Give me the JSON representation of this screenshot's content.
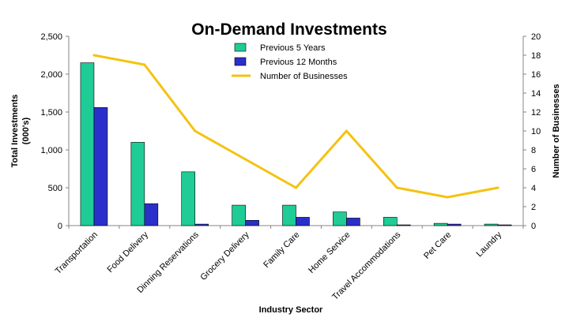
{
  "chart_data": {
    "type": "bar",
    "title": "On-Demand Investments",
    "xlabel": "Industry Sector",
    "ylabel": "Total Investments (000's)",
    "ylabel_lines": [
      "Total Investments",
      "(000's)"
    ],
    "y2label": "Number of Businesses",
    "ylim": [
      0,
      2500
    ],
    "y2lim": [
      0,
      20
    ],
    "yticks": [
      0,
      500,
      1000,
      1500,
      2000,
      2500
    ],
    "yticklabels": [
      "0",
      "500",
      "1,000",
      "1,500",
      "2,000",
      "2,500"
    ],
    "y2ticks": [
      0,
      2,
      4,
      6,
      8,
      10,
      12,
      14,
      16,
      18,
      20
    ],
    "y2ticklabels": [
      "0",
      "2",
      "4",
      "6",
      "8",
      "10",
      "12",
      "14",
      "16",
      "18",
      "20"
    ],
    "categories": [
      "Transportation",
      "Food Delivery",
      "Dinning Reservations",
      "Grocery Delivery",
      "Family Care",
      "Home Service",
      "Travel Accommodations",
      "Pet Care",
      "Laundry"
    ],
    "series": [
      {
        "name": "Previous 5 Years",
        "kind": "bar",
        "axis": "left",
        "color": "#1fcc96",
        "values": [
          2150,
          1100,
          710,
          270,
          270,
          180,
          110,
          30,
          20
        ]
      },
      {
        "name": "Previous 12 Months",
        "kind": "bar",
        "axis": "left",
        "color": "#2b2fc9",
        "values": [
          1560,
          290,
          20,
          70,
          110,
          100,
          10,
          20,
          10
        ]
      },
      {
        "name": "Number of Businesses",
        "kind": "line",
        "axis": "right",
        "color": "#f5c211",
        "values": [
          18,
          17,
          10,
          7,
          4,
          10,
          4,
          3,
          4
        ]
      }
    ],
    "legend_position": "top-center",
    "grid": false
  }
}
